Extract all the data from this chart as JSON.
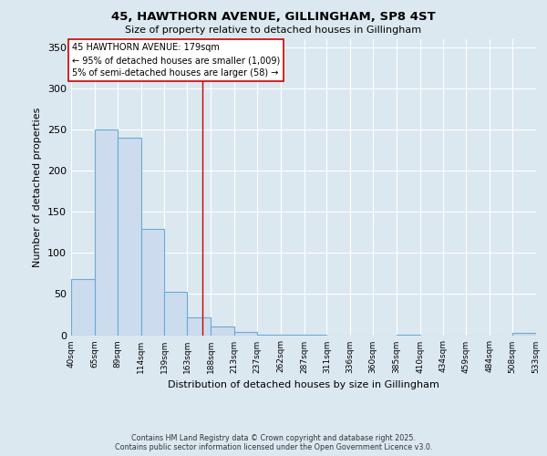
{
  "title_line1": "45, HAWTHORN AVENUE, GILLINGHAM, SP8 4ST",
  "title_line2": "Size of property relative to detached houses in Gillingham",
  "xlabel": "Distribution of detached houses by size in Gillingham",
  "ylabel": "Number of detached properties",
  "bar_edges": [
    40,
    65,
    89,
    114,
    139,
    163,
    188,
    213,
    237,
    262,
    287,
    311,
    336,
    360,
    385,
    410,
    434,
    459,
    484,
    508,
    533
  ],
  "bar_heights": [
    68,
    250,
    240,
    129,
    53,
    22,
    10,
    4,
    1,
    1,
    1,
    0,
    0,
    0,
    1,
    0,
    0,
    0,
    0,
    3
  ],
  "bar_color": "#ccdcee",
  "bar_edge_color": "#6aaad4",
  "marker_value": 179,
  "marker_color": "#cc0000",
  "annotation_title": "45 HAWTHORN AVENUE: 179sqm",
  "annotation_line2": "← 95% of detached houses are smaller (1,009)",
  "annotation_line3": "5% of semi-detached houses are larger (58) →",
  "annotation_box_color": "#ffffff",
  "annotation_box_edge": "#cc0000",
  "ylim": [
    0,
    360
  ],
  "yticks": [
    0,
    50,
    100,
    150,
    200,
    250,
    300,
    350
  ],
  "tick_labels": [
    "40sqm",
    "65sqm",
    "89sqm",
    "114sqm",
    "139sqm",
    "163sqm",
    "188sqm",
    "213sqm",
    "237sqm",
    "262sqm",
    "287sqm",
    "311sqm",
    "336sqm",
    "360sqm",
    "385sqm",
    "410sqm",
    "434sqm",
    "459sqm",
    "484sqm",
    "508sqm",
    "533sqm"
  ],
  "footer_line1": "Contains HM Land Registry data © Crown copyright and database right 2025.",
  "footer_line2": "Contains public sector information licensed under the Open Government Licence v3.0.",
  "bg_color": "#dce8f0",
  "plot_bg_color": "#dce8f0",
  "grid_color": "#ffffff",
  "title_fontsize": 9.5,
  "subtitle_fontsize": 8,
  "ylabel_fontsize": 8,
  "xlabel_fontsize": 8,
  "ytick_fontsize": 8,
  "xtick_fontsize": 6.5,
  "annot_fontsize": 7,
  "footer_fontsize": 5.8
}
